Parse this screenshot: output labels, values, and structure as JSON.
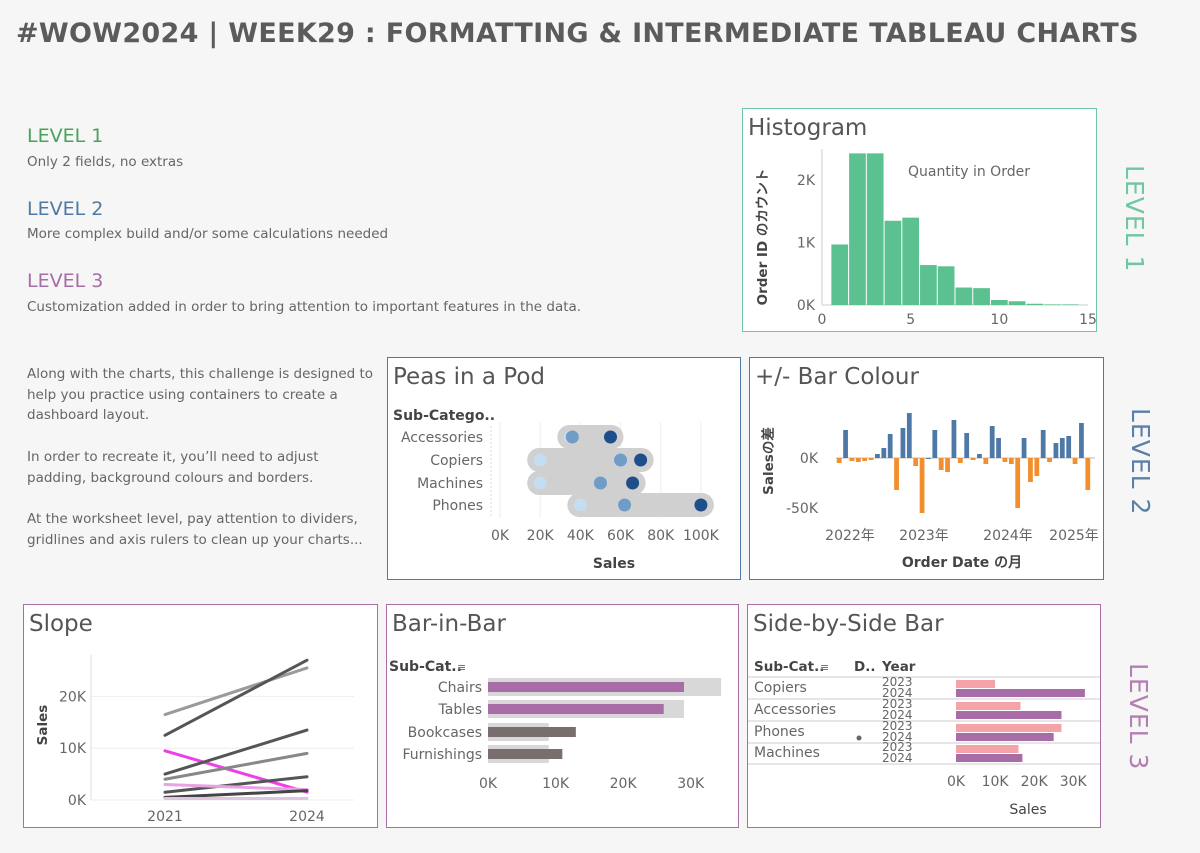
{
  "title": "#WOW2024 | WEEK29 : FORMATTING & INTERMEDIATE TABLEAU CHARTS",
  "colors": {
    "level1": "#4aa25a",
    "level2": "#4d79a4",
    "level3": "#a86ca6",
    "level1_side": "#6fc6a0",
    "level2_side": "#5a7fa8",
    "level3_side": "#b47eb0"
  },
  "levels": [
    {
      "heading": "LEVEL 1",
      "desc": "Only 2 fields, no extras"
    },
    {
      "heading": "LEVEL 2",
      "desc": "More complex build and/or some calculations needed"
    },
    {
      "heading": "LEVEL 3",
      "desc": "Customization added in order to bring attention to important features in the data."
    }
  ],
  "intro": [
    "Along with the charts, this challenge is designed to help you practice using containers to create a dashboard layout.",
    "In order to recreate it, you’ll need to adjust padding, background colours and borders.",
    "At the worksheet level, pay attention to dividers, gridlines and axis rulers to clean up your charts..."
  ],
  "side_labels": [
    "LEVEL 1",
    "LEVEL 2",
    "LEVEL 3"
  ],
  "chart_data": [
    {
      "id": "histogram",
      "type": "bar",
      "title": "Histogram",
      "xlabel": "Quantity in Order",
      "ylabel": "Order ID のカウント",
      "x_ticks": [
        "0",
        "5",
        "10",
        "15"
      ],
      "y_ticks": [
        "0K",
        "1K",
        "2K"
      ],
      "xlim": [
        0,
        15
      ],
      "ylim": [
        0,
        2500
      ],
      "bins": [
        1,
        2,
        3,
        4,
        5,
        6,
        7,
        8,
        9,
        10,
        11,
        12,
        13,
        14
      ],
      "values": [
        970,
        2430,
        2430,
        1350,
        1400,
        640,
        620,
        280,
        270,
        80,
        60,
        20,
        10,
        10
      ]
    },
    {
      "id": "peas",
      "type": "scatter",
      "title": "Peas in a Pod",
      "row_header": "Sub-Catego..",
      "xlabel": "Sales",
      "categories": [
        "Accessories",
        "Copiers",
        "Machines",
        "Phones"
      ],
      "x_ticks": [
        "0K",
        "20K",
        "40K",
        "60K",
        "80K",
        "100K"
      ],
      "xlim": [
        0,
        110000
      ],
      "points": [
        [
          35000,
          36000,
          55000
        ],
        [
          20000,
          60000,
          70000
        ],
        [
          20000,
          50000,
          66000
        ],
        [
          40000,
          62000,
          100000
        ]
      ],
      "point_colors": [
        "#c6dcef",
        "#6f9dc8",
        "#1f4f8a"
      ]
    },
    {
      "id": "barcolour",
      "type": "bar",
      "title": "+/- Bar Colour",
      "xlabel": "Order Date の月",
      "ylabel": "Salesの差",
      "x_ticks": [
        "2022年",
        "2023年",
        "2024年",
        "2025年"
      ],
      "y_ticks": [
        "0K",
        "-50K"
      ],
      "ylim": [
        -60000,
        50000
      ],
      "values": [
        -5000,
        28000,
        -3000,
        -4000,
        -3000,
        -2000,
        4000,
        10000,
        24000,
        -32000,
        30000,
        45000,
        -8000,
        -55000,
        0,
        28000,
        -12000,
        -14000,
        38000,
        -5000,
        25000,
        -2000,
        4000,
        -6000,
        32000,
        20000,
        -4000,
        -6000,
        -50000,
        20000,
        -24000,
        -18000,
        28000,
        -4000,
        15000,
        20000,
        22000,
        -6000,
        35000,
        -32000
      ]
    },
    {
      "id": "slope",
      "type": "line",
      "title": "Slope",
      "ylabel": "Sales",
      "x": [
        "2021",
        "2024"
      ],
      "y_ticks": [
        "0K",
        "10K",
        "20K"
      ],
      "ylim": [
        0,
        28000
      ],
      "series": [
        {
          "values": [
            16500,
            25500
          ],
          "color": "#9a9a9a"
        },
        {
          "values": [
            12500,
            27000
          ],
          "color": "#555555"
        },
        {
          "values": [
            9500,
            1500
          ],
          "color": "#ee3ee6"
        },
        {
          "values": [
            5000,
            13500
          ],
          "color": "#555555"
        },
        {
          "values": [
            4000,
            9000
          ],
          "color": "#888888"
        },
        {
          "values": [
            1500,
            4500
          ],
          "color": "#555555"
        },
        {
          "values": [
            3000,
            2000
          ],
          "color": "#e8a3e5"
        },
        {
          "values": [
            500,
            1800
          ],
          "color": "#444444"
        },
        {
          "values": [
            300,
            300
          ],
          "color": "#e0c5e0"
        }
      ]
    },
    {
      "id": "barinbar",
      "type": "bar",
      "title": "Bar-in-Bar",
      "row_header": "Sub-Cat..",
      "categories": [
        "Chairs",
        "Tables",
        "Bookcases",
        "Furnishings"
      ],
      "x_ticks": [
        "0K",
        "10K",
        "20K",
        "30K"
      ],
      "xlim": [
        0,
        33000
      ],
      "outer": [
        34500,
        29000,
        9000,
        9000
      ],
      "inner": [
        29000,
        26000,
        13000,
        11000
      ],
      "inner_colors": [
        "#a86ca6",
        "#a86ca6",
        "#7a6d6d",
        "#7a6d6d"
      ]
    },
    {
      "id": "sidebyside",
      "type": "bar",
      "title": "Side-by-Side Bar",
      "col_headers": [
        "Sub-Cat..",
        "D..",
        "Year"
      ],
      "xlabel": "Sales",
      "categories": [
        "Copiers",
        "Accessories",
        "Phones",
        "Machines"
      ],
      "years": [
        "2023",
        "2024"
      ],
      "x_ticks": [
        "0K",
        "10K",
        "20K",
        "30K"
      ],
      "xlim": [
        0,
        32000
      ],
      "values": [
        [
          10000,
          33000
        ],
        [
          16500,
          27000
        ],
        [
          27000,
          25000
        ],
        [
          16000,
          17000
        ]
      ],
      "year_colors": [
        "#f4a3a8",
        "#a86ca6"
      ]
    }
  ]
}
